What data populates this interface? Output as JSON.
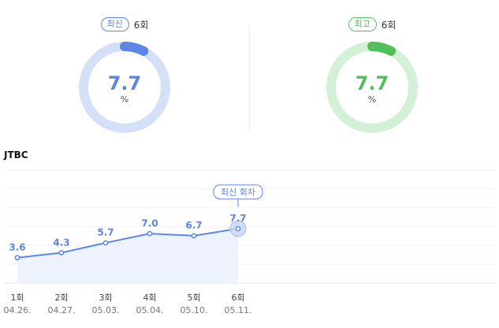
{
  "latest": {
    "badge": "최신",
    "count": "6회",
    "value": "7.7",
    "unit": "%",
    "ratio": 0.077,
    "color": "#5b86e5",
    "track": "#d4e0f7"
  },
  "best": {
    "badge": "최고",
    "count": "6회",
    "value": "7.7",
    "unit": "%",
    "ratio": 0.077,
    "color": "#52c05a",
    "track": "#d4f0d6"
  },
  "station": "JTBC",
  "chart_data": {
    "type": "area",
    "categories": [
      "1회",
      "2회",
      "3회",
      "4회",
      "5회",
      "6회"
    ],
    "dates": [
      "04.26.",
      "04.27.",
      "05.03.",
      "05.04.",
      "05.10.",
      "05.11."
    ],
    "values": [
      3.6,
      4.3,
      5.7,
      7.0,
      6.7,
      7.7
    ],
    "value_labels": [
      "3.6",
      "4.3",
      "5.7",
      "7.0",
      "6.7",
      "7.7"
    ],
    "highlight_index": 5,
    "highlight_label": "최신 회차",
    "ylim": [
      0,
      16
    ],
    "grid": true,
    "line_color": "#5b86e5",
    "fill_color": "#eef2fc"
  }
}
